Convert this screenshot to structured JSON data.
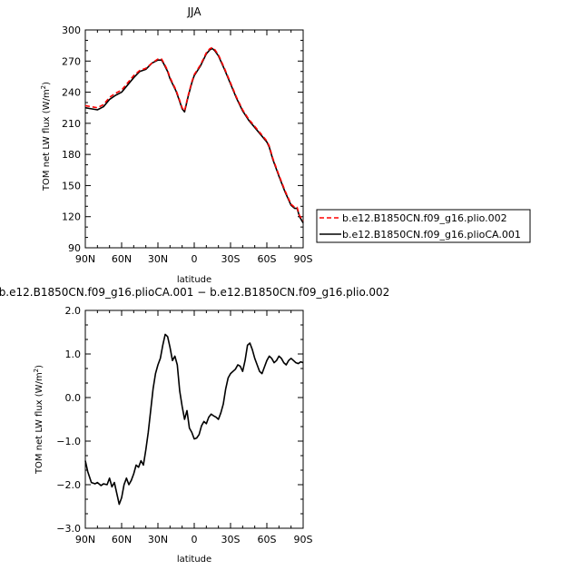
{
  "chart_data": [
    {
      "type": "line",
      "title": "JJA",
      "xlabel": "latitude",
      "ylabel": "TOM net LW flux (W/m²)",
      "xlim": [
        90,
        -90
      ],
      "ylim": [
        90,
        300
      ],
      "x_ticks": [
        90,
        60,
        30,
        0,
        -30,
        -60,
        -90
      ],
      "x_tick_labels": [
        "90N",
        "60N",
        "30N",
        "0",
        "30S",
        "60S",
        "90S"
      ],
      "y_ticks": [
        90,
        120,
        150,
        180,
        210,
        240,
        270,
        300
      ],
      "y_tick_labels": [
        "90",
        "120",
        "150",
        "180",
        "210",
        "240",
        "270",
        "300"
      ],
      "legend_position": "right-bottom, outside plot",
      "series": [
        {
          "name": "b.e12.B1850CN.f09_g16.plio.002",
          "color": "#ff0000",
          "dash": "dashed",
          "x": [
            90,
            85,
            80,
            75,
            70,
            65,
            60,
            55,
            50,
            45,
            40,
            35,
            30,
            27,
            25,
            22,
            20,
            15,
            12,
            10,
            8,
            5,
            2,
            0,
            -5,
            -10,
            -13,
            -15,
            -17,
            -20,
            -25,
            -30,
            -35,
            -40,
            -45,
            -50,
            -55,
            -60,
            -62,
            -65,
            -70,
            -75,
            -80,
            -83,
            -85,
            -87,
            -90
          ],
          "y": [
            227,
            226,
            225,
            228,
            235,
            239,
            242,
            249,
            256,
            261,
            263,
            268,
            272,
            272,
            268,
            261,
            254,
            242,
            232,
            225,
            222,
            237,
            250,
            257,
            266,
            278,
            282,
            283,
            281,
            276,
            263,
            249,
            235,
            223,
            214,
            207,
            200,
            193,
            188,
            176,
            160,
            145,
            132,
            129,
            129,
            121,
            116
          ]
        },
        {
          "name": "b.e12.B1850CN.f09_g16.plioCA.001",
          "color": "#000000",
          "dash": "solid",
          "x": [
            90,
            85,
            80,
            75,
            70,
            65,
            60,
            55,
            50,
            45,
            40,
            35,
            30,
            27,
            25,
            22,
            20,
            15,
            12,
            10,
            8,
            5,
            2,
            0,
            -5,
            -10,
            -13,
            -15,
            -17,
            -20,
            -25,
            -30,
            -35,
            -40,
            -45,
            -50,
            -55,
            -60,
            -62,
            -65,
            -70,
            -75,
            -80,
            -83,
            -85,
            -87,
            -90
          ],
          "y": [
            225,
            224,
            223,
            226,
            233,
            237,
            240,
            247,
            254,
            260,
            262,
            268,
            271,
            271,
            267,
            260,
            253,
            241,
            231,
            224,
            221,
            236,
            249,
            256,
            265,
            277,
            281,
            282,
            280,
            275,
            262,
            248,
            234,
            222,
            213,
            206,
            199,
            192,
            187,
            175,
            159,
            144,
            131,
            128,
            128,
            120,
            114
          ]
        }
      ]
    },
    {
      "type": "line",
      "title": "b.e12.B1850CN.f09_g16.plioCA.001 − b.e12.B1850CN.f09_g16.plio.002",
      "xlabel": "latitude",
      "ylabel": "TOM net LW flux (W/m²)",
      "xlim": [
        90,
        -90
      ],
      "ylim": [
        -3.0,
        2.0
      ],
      "x_ticks": [
        90,
        60,
        30,
        0,
        -30,
        -60,
        -90
      ],
      "x_tick_labels": [
        "90N",
        "60N",
        "30N",
        "0",
        "30S",
        "60S",
        "90S"
      ],
      "y_ticks": [
        -3.0,
        -2.0,
        -1.0,
        0.0,
        1.0,
        2.0
      ],
      "y_tick_labels": [
        "−3.0",
        "−2.0",
        "−1.0",
        "0.0",
        "1.0",
        "2.0"
      ],
      "series": [
        {
          "color": "#000000",
          "dash": "solid",
          "x": [
            90,
            88,
            85,
            82,
            80,
            77,
            75,
            72,
            70,
            68,
            66,
            64,
            62,
            60,
            58,
            56,
            54,
            52,
            50,
            48,
            46,
            44,
            42,
            40,
            38,
            36,
            34,
            32,
            30,
            28,
            26,
            24,
            22,
            20,
            18,
            16,
            14,
            12,
            10,
            8,
            6,
            4,
            2,
            0,
            -2,
            -4,
            -6,
            -8,
            -10,
            -12,
            -14,
            -16,
            -18,
            -20,
            -22,
            -24,
            -26,
            -28,
            -30,
            -32,
            -34,
            -36,
            -38,
            -40,
            -42,
            -44,
            -46,
            -48,
            -50,
            -52,
            -54,
            -56,
            -58,
            -60,
            -62,
            -64,
            -66,
            -68,
            -70,
            -72,
            -74,
            -76,
            -78,
            -80,
            -82,
            -84,
            -86,
            -88,
            -90
          ],
          "y": [
            -1.45,
            -1.7,
            -1.95,
            -1.98,
            -1.95,
            -2.02,
            -1.98,
            -2.0,
            -1.85,
            -2.05,
            -1.95,
            -2.2,
            -2.45,
            -2.3,
            -2.0,
            -1.85,
            -2.0,
            -1.9,
            -1.75,
            -1.55,
            -1.6,
            -1.45,
            -1.55,
            -1.2,
            -0.8,
            -0.3,
            0.2,
            0.55,
            0.75,
            0.9,
            1.2,
            1.45,
            1.4,
            1.15,
            0.85,
            0.95,
            0.75,
            0.15,
            -0.2,
            -0.5,
            -0.3,
            -0.7,
            -0.8,
            -0.95,
            -0.93,
            -0.85,
            -0.65,
            -0.55,
            -0.6,
            -0.45,
            -0.38,
            -0.42,
            -0.45,
            -0.5,
            -0.35,
            -0.15,
            0.2,
            0.45,
            0.55,
            0.6,
            0.65,
            0.75,
            0.72,
            0.6,
            0.85,
            1.2,
            1.25,
            1.1,
            0.9,
            0.75,
            0.6,
            0.55,
            0.7,
            0.85,
            0.95,
            0.9,
            0.8,
            0.85,
            0.95,
            0.9,
            0.8,
            0.75,
            0.85,
            0.9,
            0.85,
            0.8,
            0.78,
            0.82,
            0.8
          ]
        }
      ]
    }
  ]
}
